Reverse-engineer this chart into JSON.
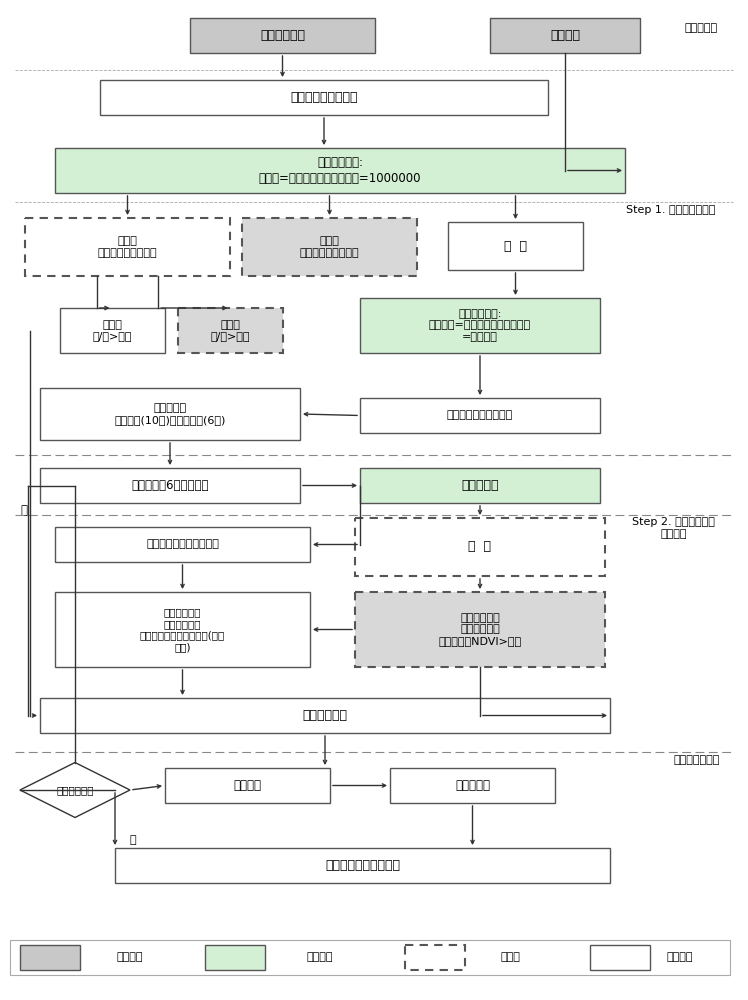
{
  "bg": "#ffffff",
  "c_gray": "#c8c8c8",
  "c_green": "#d4f0d4",
  "c_white": "#ffffff",
  "c_dg": "#d8d8d8",
  "c_edge": "#555555",
  "c_edge_dark": "#333333",
  "sections": {
    "preprocess_label": "影像预处理",
    "step1_label": "Step 1. 提取水面、滩涂",
    "step2_label": "Step 2. 精细分类建筑\n物与植被",
    "accuracy_label": "精度评价及成图"
  },
  "legend": {
    "gray_text": "遥感影像",
    "green_text": "影像操作",
    "dotted_text": "临时类",
    "white_text": "提取结果"
  }
}
